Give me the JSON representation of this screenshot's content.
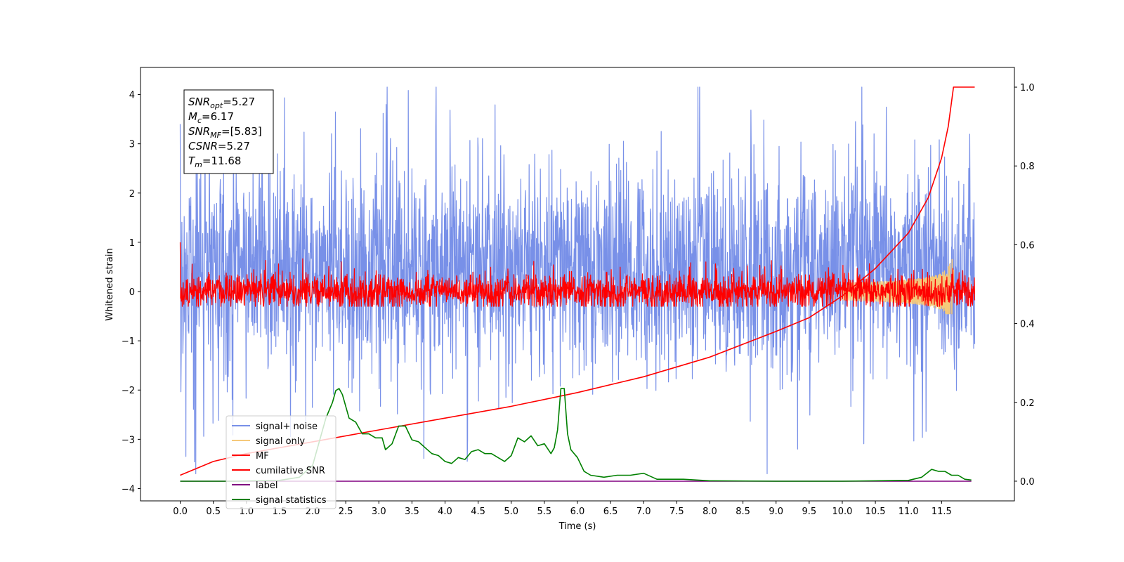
{
  "chart_data": {
    "type": "line",
    "xlabel": "Time (s)",
    "ylabel": "Whitened strain",
    "xlim": [
      -0.6,
      12.6
    ],
    "ylim": [
      -4.25,
      4.55
    ],
    "ylim_right": [
      -0.05,
      1.05
    ],
    "x_ticks": [
      "0.0",
      "0.5",
      "1.0",
      "1.5",
      "2.0",
      "2.5",
      "3.0",
      "3.5",
      "4.0",
      "4.5",
      "5.0",
      "5.5",
      "6.0",
      "6.5",
      "7.0",
      "7.5",
      "8.0",
      "8.5",
      "9.0",
      "9.5",
      "10.0",
      "10.5",
      "11.0",
      "11.5"
    ],
    "y_ticks_left": [
      "4",
      "3",
      "2",
      "1",
      "0",
      "−1",
      "−2",
      "−3",
      "−4"
    ],
    "y_ticks_right": [
      "1.0",
      "0.8",
      "0.6",
      "0.4",
      "0.2",
      "0.0"
    ],
    "grid": false,
    "legend_position": "lower-left",
    "annotation": {
      "lines": [
        {
          "sym": "SNR",
          "sub": "opt",
          "val": "=5.27"
        },
        {
          "sym": "M",
          "sub": "c",
          "val": "=6.17"
        },
        {
          "sym": "SNR",
          "sub": "MF",
          "val": "=[5.83]"
        },
        {
          "sym": "CSNR",
          "sub": "",
          "val": "=5.27"
        },
        {
          "sym": "T",
          "sub": "m",
          "val": "=11.68"
        }
      ]
    },
    "series": [
      {
        "name": "signal+ noise",
        "color": "#7890e8",
        "axis": "left",
        "kind": "noise",
        "x_range": [
          0.0,
          12.0
        ],
        "center": 0.45,
        "amplitude": 1.05,
        "max": 4.15,
        "min": -3.7
      },
      {
        "name": "signal only",
        "color": "#f5c97a",
        "axis": "left",
        "kind": "chirp",
        "x_range": [
          10.0,
          11.75
        ],
        "peak_time": 11.68,
        "peak_amplitude": 0.6
      },
      {
        "name": "MF",
        "color": "#ff0000",
        "axis": "left",
        "kind": "noise",
        "x_range": [
          0.0,
          12.0
        ],
        "center": 0.0,
        "amplitude": 0.18,
        "max": 1.0,
        "min": -0.3
      },
      {
        "name": "cumilative SNR",
        "color": "#ff0000",
        "axis": "right",
        "x": [
          0.0,
          0.5,
          1.0,
          2.0,
          3.0,
          4.0,
          5.0,
          6.0,
          7.0,
          8.0,
          9.0,
          9.5,
          10.0,
          10.5,
          11.0,
          11.3,
          11.5,
          11.6,
          11.68,
          12.0
        ],
        "y": [
          0.015,
          0.05,
          0.07,
          0.1,
          0.13,
          0.16,
          0.19,
          0.225,
          0.265,
          0.315,
          0.38,
          0.415,
          0.47,
          0.54,
          0.63,
          0.72,
          0.82,
          0.9,
          1.0,
          1.0
        ]
      },
      {
        "name": "label",
        "color": "#800080",
        "axis": "right",
        "x": [
          0.0,
          11.95
        ],
        "y": [
          0.0,
          0.0
        ]
      },
      {
        "name": "signal statistics",
        "color": "#008000",
        "axis": "right",
        "x": [
          0.0,
          0.8,
          1.5,
          1.8,
          2.0,
          2.2,
          2.3,
          2.35,
          2.4,
          2.45,
          2.55,
          2.65,
          2.75,
          2.85,
          2.95,
          3.05,
          3.1,
          3.2,
          3.3,
          3.4,
          3.5,
          3.6,
          3.7,
          3.8,
          3.9,
          4.0,
          4.1,
          4.2,
          4.3,
          4.4,
          4.5,
          4.6,
          4.7,
          4.8,
          4.9,
          5.0,
          5.1,
          5.2,
          5.3,
          5.4,
          5.5,
          5.6,
          5.65,
          5.7,
          5.75,
          5.8,
          5.85,
          5.9,
          6.0,
          6.1,
          6.2,
          6.4,
          6.6,
          6.8,
          7.0,
          7.2,
          7.6,
          8.0,
          9.0,
          10.0,
          10.5,
          11.0,
          11.2,
          11.35,
          11.45,
          11.55,
          11.65,
          11.75,
          11.85,
          11.95
        ],
        "y": [
          0.0,
          0.0,
          0.002,
          0.01,
          0.04,
          0.16,
          0.2,
          0.23,
          0.235,
          0.22,
          0.16,
          0.15,
          0.12,
          0.12,
          0.11,
          0.11,
          0.08,
          0.095,
          0.14,
          0.14,
          0.105,
          0.1,
          0.085,
          0.07,
          0.065,
          0.05,
          0.045,
          0.06,
          0.055,
          0.075,
          0.08,
          0.07,
          0.07,
          0.06,
          0.05,
          0.065,
          0.11,
          0.1,
          0.115,
          0.09,
          0.095,
          0.07,
          0.085,
          0.13,
          0.235,
          0.235,
          0.12,
          0.08,
          0.06,
          0.025,
          0.015,
          0.01,
          0.015,
          0.015,
          0.02,
          0.005,
          0.005,
          0.001,
          0.0,
          0.0,
          0.001,
          0.002,
          0.01,
          0.03,
          0.025,
          0.025,
          0.015,
          0.015,
          0.005,
          0.003
        ]
      }
    ]
  }
}
